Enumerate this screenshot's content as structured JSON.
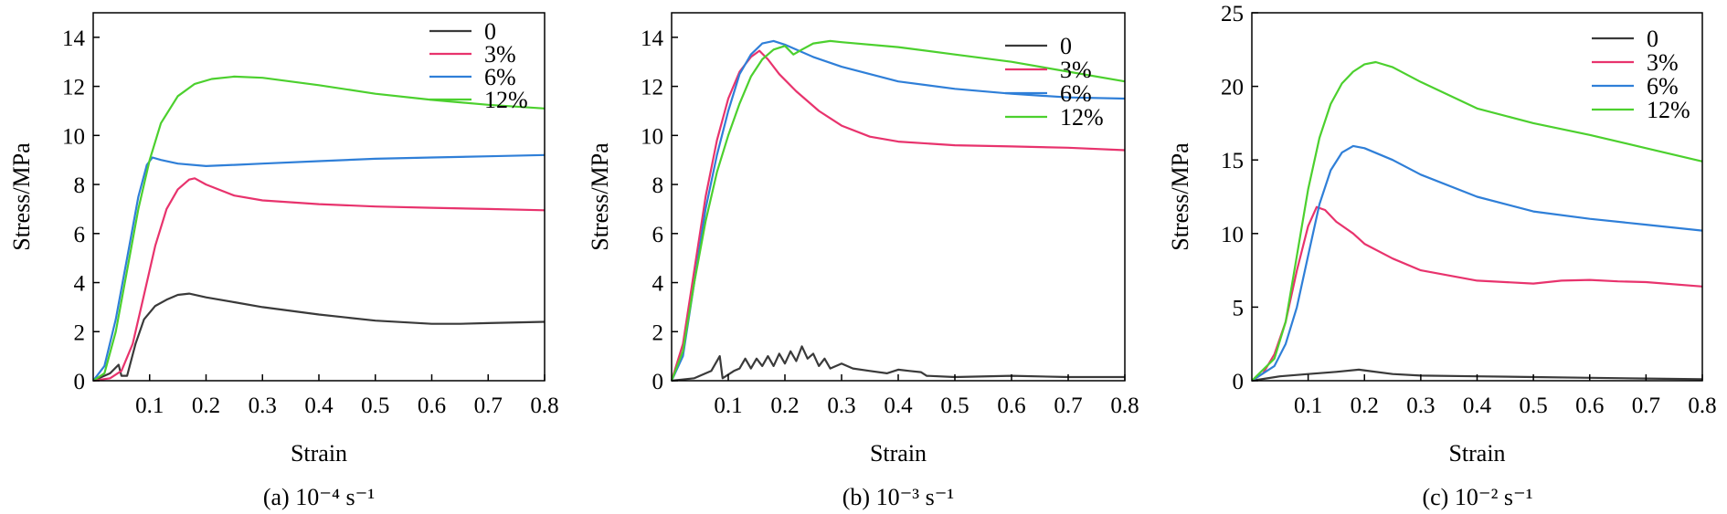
{
  "chart_data": [
    {
      "type": "line",
      "caption": "(a) 10⁻⁴ s⁻¹",
      "xlabel": "Strain",
      "ylabel": "Stress/MPa",
      "xlim": [
        0,
        0.8
      ],
      "ylim": [
        0,
        15
      ],
      "xticks": [
        "0.1",
        "0.2",
        "0.3",
        "0.4",
        "0.5",
        "0.6",
        "0.7",
        "0.8"
      ],
      "yticks": [
        "0",
        "2",
        "4",
        "6",
        "8",
        "10",
        "12",
        "14"
      ],
      "ytick_values": [
        0,
        2,
        4,
        6,
        8,
        10,
        12,
        14
      ],
      "legend_position": "top-right",
      "series": [
        {
          "name": "0",
          "color": "#3a3a3a",
          "points": [
            [
              0,
              0
            ],
            [
              0.03,
              0.3
            ],
            [
              0.045,
              0.65
            ],
            [
              0.05,
              0.2
            ],
            [
              0.06,
              0.2
            ],
            [
              0.075,
              1.5
            ],
            [
              0.09,
              2.5
            ],
            [
              0.11,
              3.05
            ],
            [
              0.13,
              3.3
            ],
            [
              0.15,
              3.5
            ],
            [
              0.17,
              3.55
            ],
            [
              0.2,
              3.4
            ],
            [
              0.25,
              3.2
            ],
            [
              0.3,
              3.0
            ],
            [
              0.4,
              2.7
            ],
            [
              0.5,
              2.45
            ],
            [
              0.6,
              2.32
            ],
            [
              0.65,
              2.32
            ],
            [
              0.7,
              2.35
            ],
            [
              0.8,
              2.4
            ]
          ]
        },
        {
          "name": "3%",
          "color": "#e8336d",
          "points": [
            [
              0,
              0
            ],
            [
              0.03,
              0.1
            ],
            [
              0.05,
              0.4
            ],
            [
              0.07,
              1.5
            ],
            [
              0.09,
              3.5
            ],
            [
              0.11,
              5.5
            ],
            [
              0.13,
              7.0
            ],
            [
              0.15,
              7.8
            ],
            [
              0.17,
              8.2
            ],
            [
              0.18,
              8.25
            ],
            [
              0.2,
              8.0
            ],
            [
              0.25,
              7.55
            ],
            [
              0.3,
              7.35
            ],
            [
              0.4,
              7.2
            ],
            [
              0.5,
              7.1
            ],
            [
              0.6,
              7.05
            ],
            [
              0.7,
              7.0
            ],
            [
              0.8,
              6.95
            ]
          ]
        },
        {
          "name": "6%",
          "color": "#2f7fd8",
          "points": [
            [
              0,
              0
            ],
            [
              0.02,
              0.6
            ],
            [
              0.04,
              2.5
            ],
            [
              0.06,
              5.0
            ],
            [
              0.08,
              7.5
            ],
            [
              0.095,
              8.8
            ],
            [
              0.105,
              9.1
            ],
            [
              0.12,
              9.0
            ],
            [
              0.15,
              8.85
            ],
            [
              0.2,
              8.75
            ],
            [
              0.25,
              8.8
            ],
            [
              0.3,
              8.85
            ],
            [
              0.4,
              8.95
            ],
            [
              0.5,
              9.05
            ],
            [
              0.6,
              9.1
            ],
            [
              0.7,
              9.15
            ],
            [
              0.8,
              9.2
            ]
          ]
        },
        {
          "name": "12%",
          "color": "#4cd02e",
          "points": [
            [
              0,
              0
            ],
            [
              0.02,
              0.3
            ],
            [
              0.04,
              2.0
            ],
            [
              0.06,
              4.5
            ],
            [
              0.08,
              7.0
            ],
            [
              0.1,
              9.0
            ],
            [
              0.12,
              10.5
            ],
            [
              0.15,
              11.6
            ],
            [
              0.18,
              12.1
            ],
            [
              0.21,
              12.3
            ],
            [
              0.25,
              12.4
            ],
            [
              0.3,
              12.35
            ],
            [
              0.4,
              12.05
            ],
            [
              0.5,
              11.7
            ],
            [
              0.6,
              11.45
            ],
            [
              0.7,
              11.25
            ],
            [
              0.8,
              11.1
            ]
          ]
        }
      ]
    },
    {
      "type": "line",
      "caption": "(b) 10⁻³ s⁻¹",
      "xlabel": "Strain",
      "ylabel": "Stress/MPa",
      "xlim": [
        0,
        0.8
      ],
      "ylim": [
        0,
        15
      ],
      "xticks": [
        "0.1",
        "0.2",
        "0.3",
        "0.4",
        "0.5",
        "0.6",
        "0.7",
        "0.8"
      ],
      "yticks": [
        "0",
        "2",
        "4",
        "6",
        "8",
        "10",
        "12",
        "14"
      ],
      "ytick_values": [
        0,
        2,
        4,
        6,
        8,
        10,
        12,
        14
      ],
      "legend_position": "top-right",
      "series": [
        {
          "name": "0",
          "color": "#3a3a3a",
          "points": [
            [
              0,
              0
            ],
            [
              0.04,
              0.1
            ],
            [
              0.07,
              0.4
            ],
            [
              0.085,
              1.0
            ],
            [
              0.09,
              0.1
            ],
            [
              0.11,
              0.4
            ],
            [
              0.12,
              0.5
            ],
            [
              0.13,
              0.9
            ],
            [
              0.14,
              0.5
            ],
            [
              0.15,
              0.9
            ],
            [
              0.16,
              0.6
            ],
            [
              0.17,
              1.0
            ],
            [
              0.18,
              0.6
            ],
            [
              0.19,
              1.1
            ],
            [
              0.2,
              0.7
            ],
            [
              0.21,
              1.2
            ],
            [
              0.22,
              0.8
            ],
            [
              0.23,
              1.4
            ],
            [
              0.24,
              0.9
            ],
            [
              0.25,
              1.1
            ],
            [
              0.26,
              0.6
            ],
            [
              0.27,
              0.9
            ],
            [
              0.28,
              0.5
            ],
            [
              0.3,
              0.7
            ],
            [
              0.32,
              0.5
            ],
            [
              0.35,
              0.4
            ],
            [
              0.38,
              0.3
            ],
            [
              0.4,
              0.45
            ],
            [
              0.42,
              0.4
            ],
            [
              0.44,
              0.35
            ],
            [
              0.45,
              0.2
            ],
            [
              0.5,
              0.15
            ],
            [
              0.6,
              0.2
            ],
            [
              0.7,
              0.15
            ],
            [
              0.8,
              0.15
            ]
          ]
        },
        {
          "name": "3%",
          "color": "#e8336d",
          "points": [
            [
              0,
              0
            ],
            [
              0.02,
              1.5
            ],
            [
              0.04,
              4.5
            ],
            [
              0.06,
              7.5
            ],
            [
              0.08,
              9.8
            ],
            [
              0.1,
              11.5
            ],
            [
              0.12,
              12.6
            ],
            [
              0.14,
              13.2
            ],
            [
              0.155,
              13.45
            ],
            [
              0.17,
              13.1
            ],
            [
              0.19,
              12.5
            ],
            [
              0.22,
              11.8
            ],
            [
              0.26,
              11.0
            ],
            [
              0.3,
              10.4
            ],
            [
              0.35,
              9.95
            ],
            [
              0.4,
              9.75
            ],
            [
              0.5,
              9.6
            ],
            [
              0.6,
              9.55
            ],
            [
              0.7,
              9.5
            ],
            [
              0.8,
              9.4
            ]
          ]
        },
        {
          "name": "6%",
          "color": "#2f7fd8",
          "points": [
            [
              0,
              0
            ],
            [
              0.02,
              1.0
            ],
            [
              0.04,
              4.0
            ],
            [
              0.06,
              7.0
            ],
            [
              0.08,
              9.2
            ],
            [
              0.1,
              11.0
            ],
            [
              0.12,
              12.5
            ],
            [
              0.14,
              13.3
            ],
            [
              0.16,
              13.75
            ],
            [
              0.18,
              13.85
            ],
            [
              0.2,
              13.7
            ],
            [
              0.25,
              13.2
            ],
            [
              0.3,
              12.8
            ],
            [
              0.4,
              12.2
            ],
            [
              0.5,
              11.9
            ],
            [
              0.6,
              11.7
            ],
            [
              0.7,
              11.55
            ],
            [
              0.8,
              11.5
            ]
          ]
        },
        {
          "name": "12%",
          "color": "#4cd02e",
          "points": [
            [
              0,
              0
            ],
            [
              0.02,
              1.2
            ],
            [
              0.04,
              4.0
            ],
            [
              0.06,
              6.5
            ],
            [
              0.08,
              8.5
            ],
            [
              0.1,
              10.0
            ],
            [
              0.12,
              11.3
            ],
            [
              0.14,
              12.4
            ],
            [
              0.16,
              13.1
            ],
            [
              0.18,
              13.5
            ],
            [
              0.2,
              13.65
            ],
            [
              0.215,
              13.3
            ],
            [
              0.23,
              13.5
            ],
            [
              0.25,
              13.75
            ],
            [
              0.28,
              13.85
            ],
            [
              0.3,
              13.8
            ],
            [
              0.4,
              13.6
            ],
            [
              0.5,
              13.3
            ],
            [
              0.6,
              13.0
            ],
            [
              0.7,
              12.6
            ],
            [
              0.8,
              12.2
            ]
          ]
        }
      ]
    },
    {
      "type": "line",
      "caption": "(c) 10⁻² s⁻¹",
      "xlabel": "Strain",
      "ylabel": "Stress/MPa",
      "xlim": [
        0,
        0.8
      ],
      "ylim": [
        0,
        25
      ],
      "xticks": [
        "0.1",
        "0.2",
        "0.3",
        "0.4",
        "0.5",
        "0.6",
        "0.7",
        "0.8"
      ],
      "yticks": [
        "0",
        "5",
        "10",
        "15",
        "20",
        "25"
      ],
      "ytick_values": [
        0,
        5,
        10,
        15,
        20,
        25
      ],
      "legend_position": "top-right",
      "series": [
        {
          "name": "0",
          "color": "#3a3a3a",
          "points": [
            [
              0,
              0
            ],
            [
              0.05,
              0.3
            ],
            [
              0.1,
              0.45
            ],
            [
              0.15,
              0.6
            ],
            [
              0.19,
              0.75
            ],
            [
              0.21,
              0.65
            ],
            [
              0.25,
              0.45
            ],
            [
              0.3,
              0.35
            ],
            [
              0.4,
              0.3
            ],
            [
              0.5,
              0.25
            ],
            [
              0.6,
              0.2
            ],
            [
              0.7,
              0.15
            ],
            [
              0.8,
              0.1
            ]
          ]
        },
        {
          "name": "3%",
          "color": "#e8336d",
          "points": [
            [
              0,
              0
            ],
            [
              0.02,
              0.5
            ],
            [
              0.04,
              1.8
            ],
            [
              0.06,
              4.0
            ],
            [
              0.08,
              7.5
            ],
            [
              0.1,
              10.5
            ],
            [
              0.115,
              11.8
            ],
            [
              0.13,
              11.6
            ],
            [
              0.15,
              10.8
            ],
            [
              0.18,
              10.0
            ],
            [
              0.2,
              9.3
            ],
            [
              0.25,
              8.3
            ],
            [
              0.3,
              7.5
            ],
            [
              0.4,
              6.8
            ],
            [
              0.5,
              6.6
            ],
            [
              0.55,
              6.8
            ],
            [
              0.6,
              6.85
            ],
            [
              0.65,
              6.75
            ],
            [
              0.7,
              6.7
            ],
            [
              0.8,
              6.4
            ]
          ]
        },
        {
          "name": "6%",
          "color": "#2f7fd8",
          "points": [
            [
              0,
              0
            ],
            [
              0.04,
              1.0
            ],
            [
              0.06,
              2.5
            ],
            [
              0.08,
              5.0
            ],
            [
              0.1,
              8.5
            ],
            [
              0.12,
              12.0
            ],
            [
              0.14,
              14.3
            ],
            [
              0.16,
              15.5
            ],
            [
              0.18,
              15.95
            ],
            [
              0.2,
              15.8
            ],
            [
              0.25,
              15.0
            ],
            [
              0.3,
              14.0
            ],
            [
              0.4,
              12.5
            ],
            [
              0.5,
              11.5
            ],
            [
              0.6,
              11.0
            ],
            [
              0.7,
              10.6
            ],
            [
              0.8,
              10.2
            ]
          ]
        },
        {
          "name": "12%",
          "color": "#4cd02e",
          "points": [
            [
              0,
              0
            ],
            [
              0.04,
              1.5
            ],
            [
              0.06,
              4.0
            ],
            [
              0.08,
              8.5
            ],
            [
              0.1,
              13.0
            ],
            [
              0.12,
              16.5
            ],
            [
              0.14,
              18.8
            ],
            [
              0.16,
              20.2
            ],
            [
              0.18,
              21.0
            ],
            [
              0.2,
              21.5
            ],
            [
              0.22,
              21.65
            ],
            [
              0.25,
              21.3
            ],
            [
              0.3,
              20.3
            ],
            [
              0.4,
              18.5
            ],
            [
              0.5,
              17.5
            ],
            [
              0.6,
              16.7
            ],
            [
              0.7,
              15.8
            ],
            [
              0.8,
              14.9
            ]
          ]
        }
      ]
    }
  ]
}
